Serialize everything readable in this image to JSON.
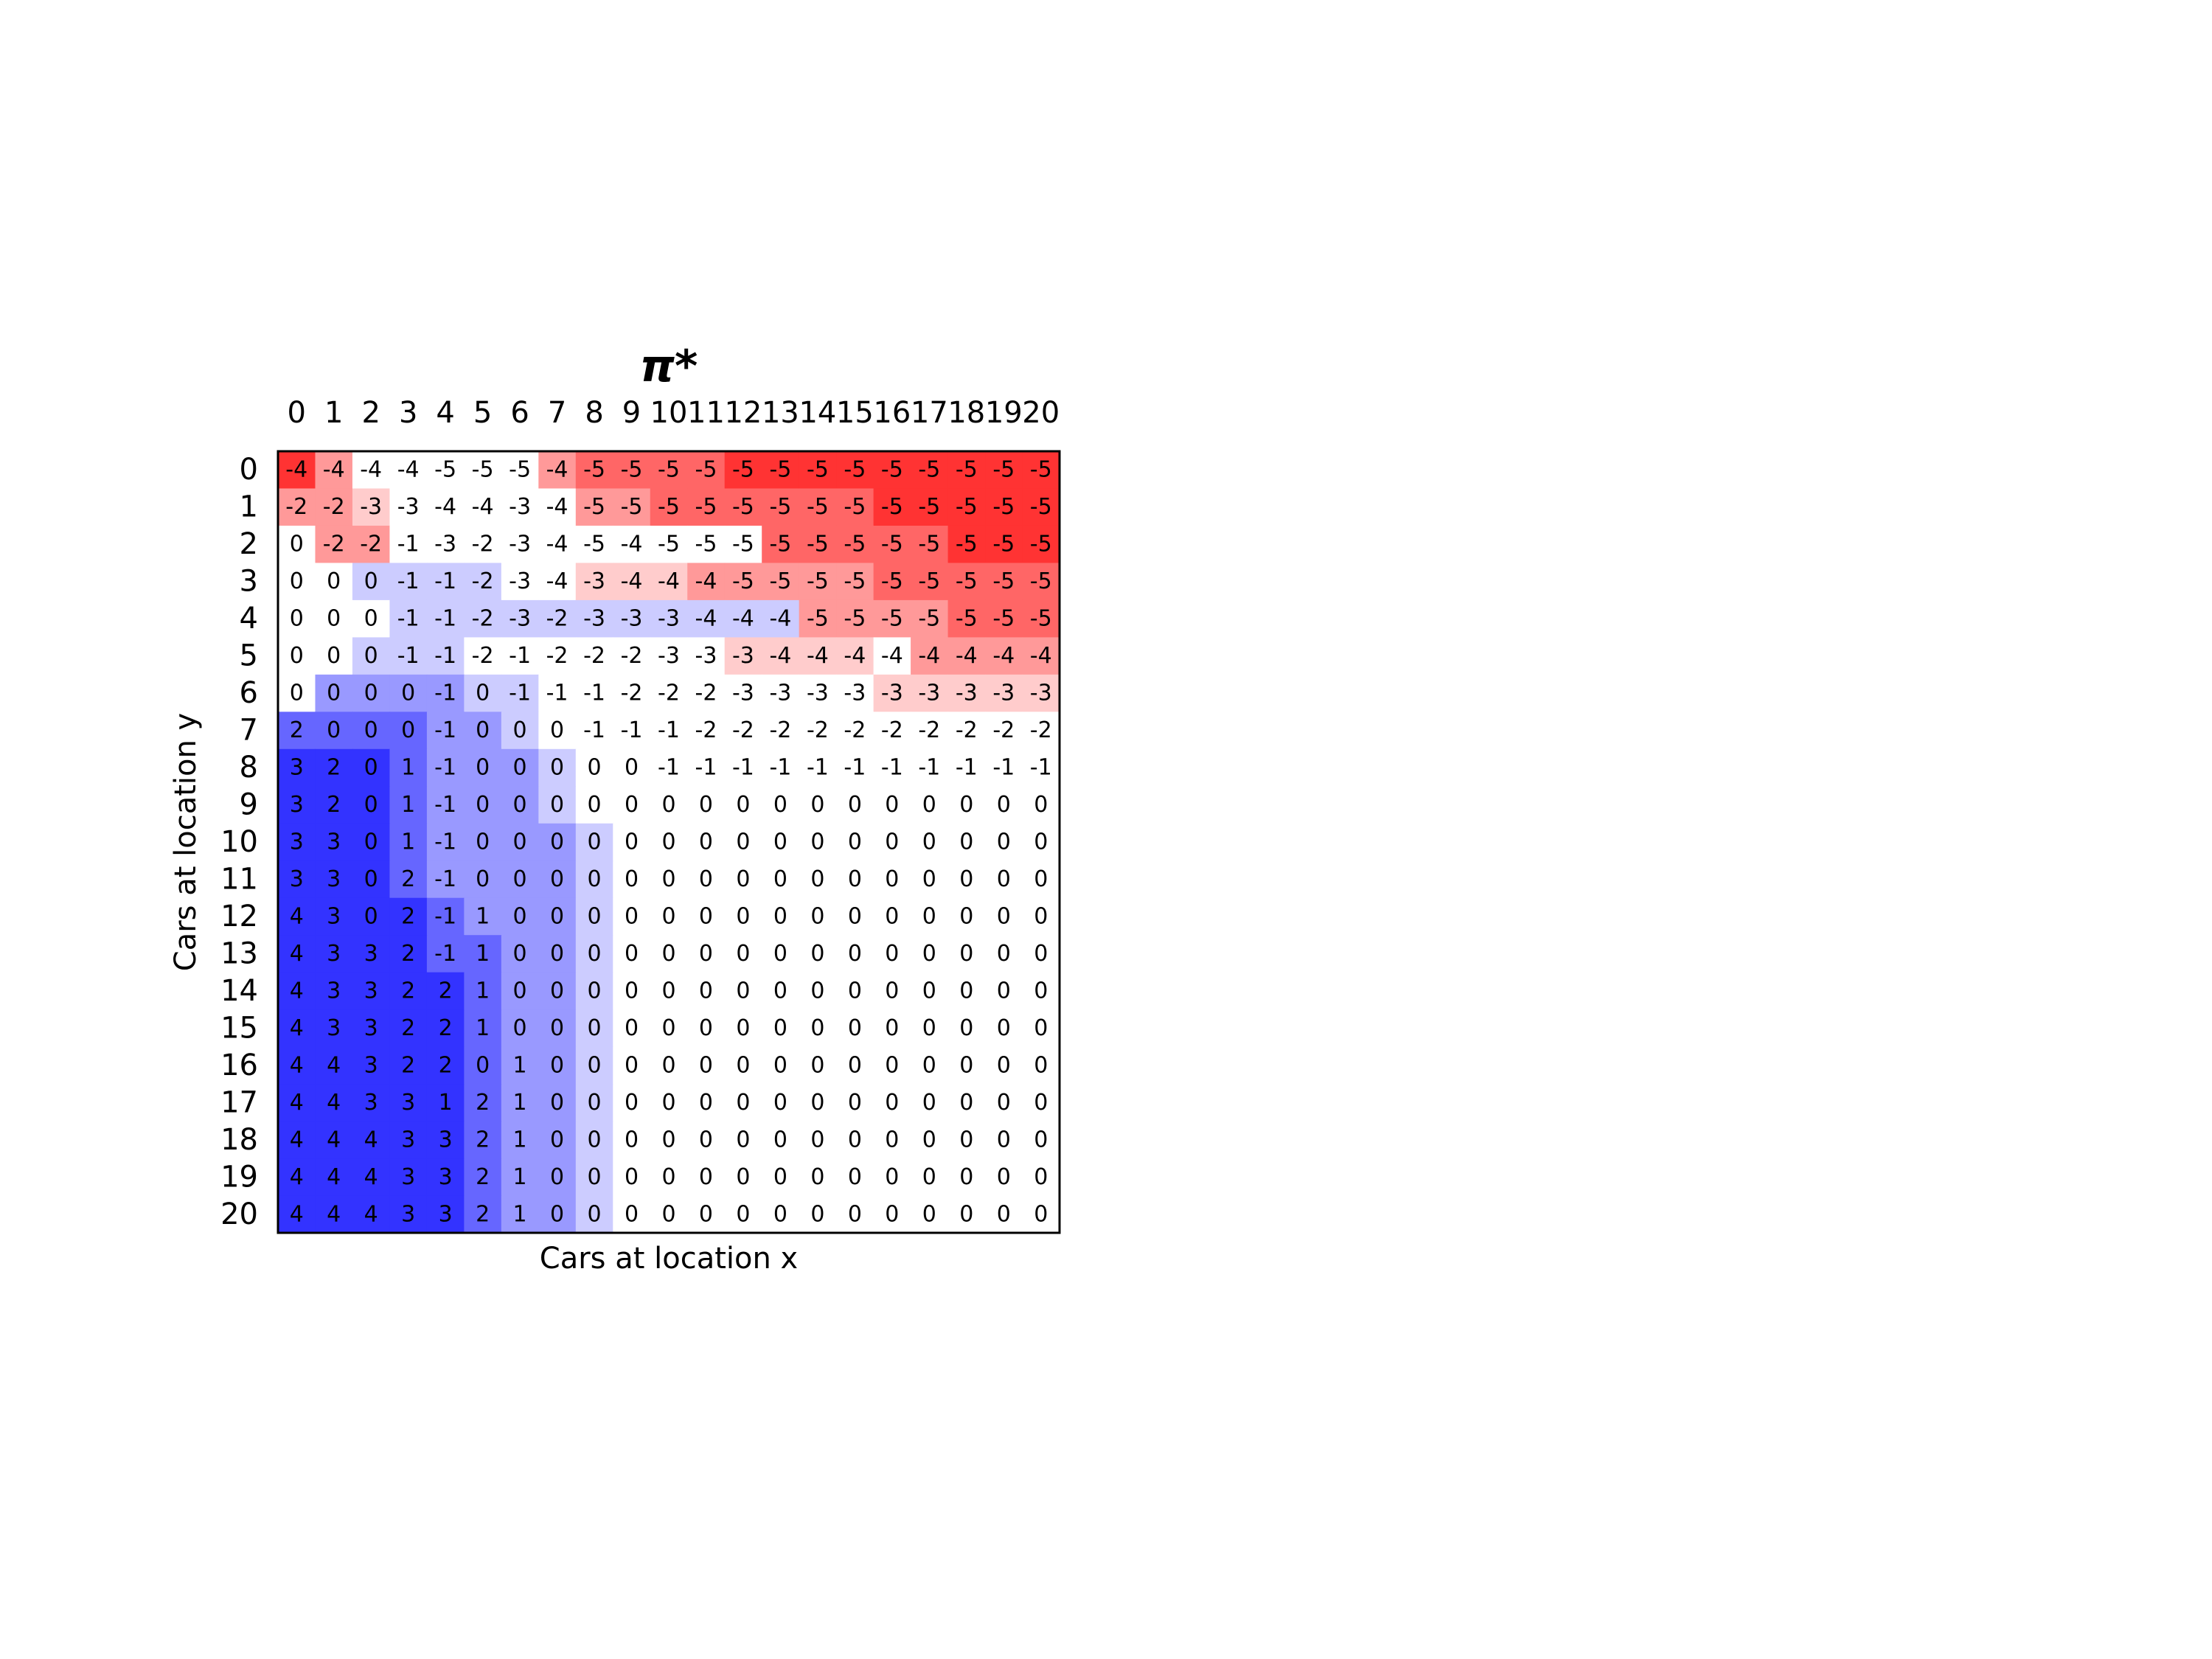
{
  "chart_data": {
    "type": "heatmap",
    "title": "π*",
    "xlabel": "Cars at location x",
    "ylabel": "Cars at location y",
    "x": [
      0,
      1,
      2,
      3,
      4,
      5,
      6,
      7,
      8,
      9,
      10,
      11,
      12,
      13,
      14,
      15,
      16,
      17,
      18,
      19,
      20
    ],
    "y": [
      0,
      1,
      2,
      3,
      4,
      5,
      6,
      7,
      8,
      9,
      10,
      11,
      12,
      13,
      14,
      15,
      16,
      17,
      18,
      19,
      20
    ],
    "x_tick_labels": [
      "0",
      "1",
      "2",
      "3",
      "4",
      "5",
      "6",
      "7",
      "8",
      "9",
      "10",
      "11",
      "12",
      "13",
      "14",
      "15",
      "16",
      "17",
      "18",
      "19",
      "20"
    ],
    "y_tick_labels": [
      "0",
      "1",
      "2",
      "3",
      "4",
      "5",
      "6",
      "7",
      "8",
      "9",
      "10",
      "11",
      "12",
      "13",
      "14",
      "15",
      "16",
      "17",
      "18",
      "19",
      "20"
    ],
    "colormap": "bwr",
    "color_range": [
      -5,
      5
    ],
    "colors": {
      "negative": "#ff0000",
      "neutral": "#ffffff",
      "positive": "#0000ff"
    },
    "grid": false,
    "values": [
      [
        -4,
        -4,
        -4,
        -4,
        -5,
        -5,
        -5,
        -4,
        -5,
        -5,
        -5,
        -5,
        -5,
        -5,
        -5,
        -5,
        -5,
        -5,
        -5,
        -5,
        -5
      ],
      [
        -2,
        -2,
        -3,
        -3,
        -4,
        -4,
        -3,
        -4,
        -5,
        -5,
        -5,
        -5,
        -5,
        -5,
        -5,
        -5,
        -5,
        -5,
        -5,
        -5,
        -5
      ],
      [
        0,
        -2,
        -2,
        -1,
        -3,
        -2,
        -3,
        -4,
        -5,
        -4,
        -5,
        -5,
        -5,
        -5,
        -5,
        -5,
        -5,
        -5,
        -5,
        -5,
        -5
      ],
      [
        0,
        0,
        0,
        -1,
        -1,
        -2,
        -3,
        -4,
        -3,
        -4,
        -4,
        -4,
        -5,
        -5,
        -5,
        -5,
        -5,
        -5,
        -5,
        -5,
        -5
      ],
      [
        0,
        0,
        0,
        -1,
        -1,
        -2,
        -3,
        -2,
        -3,
        -3,
        -3,
        -4,
        -4,
        -4,
        -5,
        -5,
        -5,
        -5,
        -5,
        -5,
        -5
      ],
      [
        0,
        0,
        0,
        -1,
        -1,
        -2,
        -1,
        -2,
        -2,
        -2,
        -3,
        -3,
        -3,
        -4,
        -4,
        -4,
        -4,
        -4,
        -4,
        -4,
        -4
      ],
      [
        0,
        0,
        0,
        0,
        -1,
        0,
        -1,
        -1,
        -1,
        -2,
        -2,
        -2,
        -3,
        -3,
        -3,
        -3,
        -3,
        -3,
        -3,
        -3,
        -3
      ],
      [
        2,
        0,
        0,
        0,
        -1,
        0,
        0,
        0,
        -1,
        -1,
        -1,
        -2,
        -2,
        -2,
        -2,
        -2,
        -2,
        -2,
        -2,
        -2,
        -2
      ],
      [
        3,
        2,
        0,
        1,
        -1,
        0,
        0,
        0,
        0,
        0,
        -1,
        -1,
        -1,
        -1,
        -1,
        -1,
        -1,
        -1,
        -1,
        -1,
        -1
      ],
      [
        3,
        2,
        0,
        1,
        -1,
        0,
        0,
        0,
        0,
        0,
        0,
        0,
        0,
        0,
        0,
        0,
        0,
        0,
        0,
        0,
        0
      ],
      [
        3,
        3,
        0,
        1,
        -1,
        0,
        0,
        0,
        0,
        0,
        0,
        0,
        0,
        0,
        0,
        0,
        0,
        0,
        0,
        0,
        0
      ],
      [
        3,
        3,
        0,
        2,
        -1,
        0,
        0,
        0,
        0,
        0,
        0,
        0,
        0,
        0,
        0,
        0,
        0,
        0,
        0,
        0,
        0
      ],
      [
        4,
        3,
        0,
        2,
        -1,
        1,
        0,
        0,
        0,
        0,
        0,
        0,
        0,
        0,
        0,
        0,
        0,
        0,
        0,
        0,
        0
      ],
      [
        4,
        3,
        3,
        2,
        -1,
        1,
        0,
        0,
        0,
        0,
        0,
        0,
        0,
        0,
        0,
        0,
        0,
        0,
        0,
        0,
        0
      ],
      [
        4,
        3,
        3,
        2,
        2,
        1,
        0,
        0,
        0,
        0,
        0,
        0,
        0,
        0,
        0,
        0,
        0,
        0,
        0,
        0,
        0
      ],
      [
        4,
        3,
        3,
        2,
        2,
        1,
        0,
        0,
        0,
        0,
        0,
        0,
        0,
        0,
        0,
        0,
        0,
        0,
        0,
        0,
        0
      ],
      [
        4,
        4,
        3,
        2,
        2,
        0,
        1,
        0,
        0,
        0,
        0,
        0,
        0,
        0,
        0,
        0,
        0,
        0,
        0,
        0,
        0
      ],
      [
        4,
        4,
        3,
        3,
        1,
        2,
        1,
        0,
        0,
        0,
        0,
        0,
        0,
        0,
        0,
        0,
        0,
        0,
        0,
        0,
        0
      ],
      [
        4,
        4,
        4,
        3,
        3,
        2,
        1,
        0,
        0,
        0,
        0,
        0,
        0,
        0,
        0,
        0,
        0,
        0,
        0,
        0,
        0
      ],
      [
        4,
        4,
        4,
        3,
        3,
        2,
        1,
        0,
        0,
        0,
        0,
        0,
        0,
        0,
        0,
        0,
        0,
        0,
        0,
        0,
        0
      ],
      [
        4,
        4,
        4,
        3,
        3,
        2,
        1,
        0,
        0,
        0,
        0,
        0,
        0,
        0,
        0,
        0,
        0,
        0,
        0,
        0,
        0
      ]
    ],
    "shading": [
      [
        -4,
        -2,
        0,
        0,
        0,
        0,
        0,
        -2,
        -3,
        -3,
        -3,
        -3,
        -4,
        -4,
        -4,
        -4,
        -4,
        -4,
        -4,
        -4,
        -4
      ],
      [
        -2,
        -2,
        -1,
        0,
        0,
        0,
        0,
        0,
        -2,
        -2,
        -3,
        -3,
        -3,
        -3,
        -3,
        -3,
        -4,
        -4,
        -4,
        -4,
        -4
      ],
      [
        0,
        -2,
        -2,
        0,
        0,
        0,
        0,
        0,
        0,
        0,
        0,
        0,
        0,
        -3,
        -3,
        -3,
        -3,
        -3,
        -4,
        -4,
        -4
      ],
      [
        0,
        0,
        1,
        1,
        1,
        1,
        0,
        0,
        -1,
        -1,
        -1,
        -2,
        -2,
        -2,
        -2,
        -2,
        -3,
        -3,
        -3,
        -3,
        -3
      ],
      [
        0,
        0,
        0,
        1,
        1,
        1,
        1,
        1,
        1,
        1,
        1,
        1,
        1,
        1,
        -2,
        -2,
        -2,
        -2,
        -3,
        -3,
        -3
      ],
      [
        0,
        0,
        1,
        1,
        1,
        0,
        0,
        0,
        0,
        0,
        0,
        0,
        -1,
        -1,
        -1,
        -1,
        0,
        -2,
        -2,
        -2,
        -2
      ],
      [
        0,
        2,
        2,
        2,
        2,
        1,
        1,
        0,
        0,
        0,
        0,
        0,
        0,
        0,
        0,
        0,
        -1,
        -1,
        -1,
        -1,
        -1
      ],
      [
        3,
        3,
        3,
        3,
        2,
        2,
        1,
        0,
        0,
        0,
        0,
        0,
        0,
        0,
        0,
        0,
        0,
        0,
        0,
        0,
        0
      ],
      [
        4,
        4,
        4,
        3,
        2,
        2,
        2,
        1,
        0,
        0,
        0,
        0,
        0,
        0,
        0,
        0,
        0,
        0,
        0,
        0,
        0
      ],
      [
        4,
        4,
        4,
        3,
        2,
        2,
        2,
        1,
        0,
        0,
        0,
        0,
        0,
        0,
        0,
        0,
        0,
        0,
        0,
        0,
        0
      ],
      [
        4,
        4,
        4,
        3,
        2,
        2,
        2,
        2,
        1,
        0,
        0,
        0,
        0,
        0,
        0,
        0,
        0,
        0,
        0,
        0,
        0
      ],
      [
        4,
        4,
        4,
        3,
        2,
        2,
        2,
        2,
        1,
        0,
        0,
        0,
        0,
        0,
        0,
        0,
        0,
        0,
        0,
        0,
        0
      ],
      [
        4,
        4,
        4,
        4,
        3,
        2,
        2,
        2,
        1,
        0,
        0,
        0,
        0,
        0,
        0,
        0,
        0,
        0,
        0,
        0,
        0
      ],
      [
        4,
        4,
        4,
        4,
        3,
        3,
        2,
        2,
        1,
        0,
        0,
        0,
        0,
        0,
        0,
        0,
        0,
        0,
        0,
        0,
        0
      ],
      [
        4,
        4,
        4,
        4,
        4,
        3,
        2,
        2,
        1,
        0,
        0,
        0,
        0,
        0,
        0,
        0,
        0,
        0,
        0,
        0,
        0
      ],
      [
        4,
        4,
        4,
        4,
        4,
        3,
        2,
        2,
        1,
        0,
        0,
        0,
        0,
        0,
        0,
        0,
        0,
        0,
        0,
        0,
        0
      ],
      [
        4,
        4,
        4,
        4,
        4,
        3,
        2,
        2,
        1,
        0,
        0,
        0,
        0,
        0,
        0,
        0,
        0,
        0,
        0,
        0,
        0
      ],
      [
        4,
        4,
        4,
        4,
        4,
        3,
        2,
        2,
        1,
        0,
        0,
        0,
        0,
        0,
        0,
        0,
        0,
        0,
        0,
        0,
        0
      ],
      [
        4,
        4,
        4,
        4,
        4,
        3,
        2,
        2,
        1,
        0,
        0,
        0,
        0,
        0,
        0,
        0,
        0,
        0,
        0,
        0,
        0
      ],
      [
        4,
        4,
        4,
        4,
        4,
        3,
        2,
        2,
        1,
        0,
        0,
        0,
        0,
        0,
        0,
        0,
        0,
        0,
        0,
        0,
        0
      ],
      [
        4,
        4,
        4,
        4,
        4,
        3,
        2,
        2,
        1,
        0,
        0,
        0,
        0,
        0,
        0,
        0,
        0,
        0,
        0,
        0,
        0
      ]
    ]
  }
}
